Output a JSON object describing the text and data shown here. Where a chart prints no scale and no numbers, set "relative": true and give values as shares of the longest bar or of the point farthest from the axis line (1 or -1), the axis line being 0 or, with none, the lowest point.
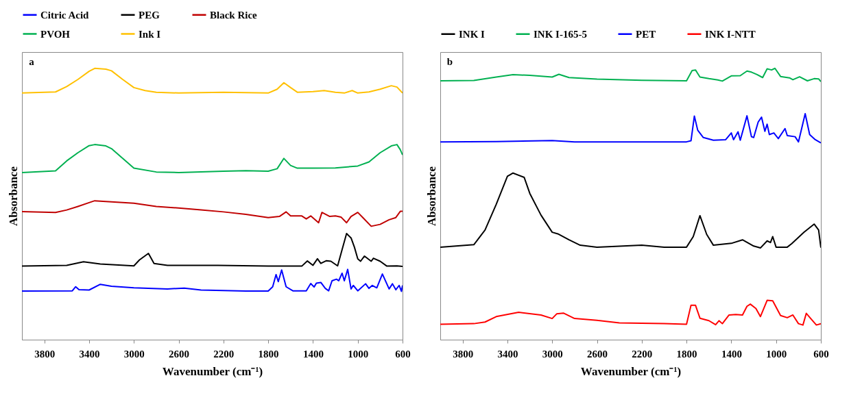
{
  "chart_data": [
    {
      "type": "line",
      "relative": true,
      "annotations": [
        "a"
      ],
      "xlabel": "Wavenumber (cm⁻¹)",
      "ylabel": "Absorbance",
      "xlim": [
        4000,
        600
      ],
      "xticks": [
        3800,
        3400,
        3000,
        2600,
        2200,
        1800,
        1400,
        1000,
        600
      ],
      "legend": "top",
      "grid": false,
      "marker": "none",
      "series": [
        {
          "name": "Citric Acid",
          "color": "#0000ff",
          "x": [
            4000,
            3550,
            3520,
            3490,
            3400,
            3300,
            3200,
            3000,
            2700,
            2550,
            2400,
            2000,
            1800,
            1760,
            1730,
            1710,
            1680,
            1640,
            1580,
            1460,
            1420,
            1390,
            1370,
            1330,
            1290,
            1260,
            1230,
            1190,
            1170,
            1140,
            1120,
            1090,
            1060,
            1040,
            1000,
            930,
            900,
            870,
            830,
            780,
            720,
            690,
            660,
            630,
            610,
            600
          ],
          "values": [
            0.179,
            0.18,
            0.195,
            0.184,
            0.183,
            0.204,
            0.197,
            0.191,
            0.187,
            0.19,
            0.183,
            0.179,
            0.179,
            0.195,
            0.24,
            0.214,
            0.257,
            0.195,
            0.18,
            0.18,
            0.207,
            0.194,
            0.208,
            0.211,
            0.189,
            0.18,
            0.217,
            0.223,
            0.217,
            0.245,
            0.217,
            0.259,
            0.187,
            0.2,
            0.18,
            0.206,
            0.189,
            0.2,
            0.191,
            0.242,
            0.187,
            0.206,
            0.184,
            0.2,
            0.178,
            0.2
          ]
        },
        {
          "name": "PEG",
          "color": "#000000",
          "x": [
            4000,
            3600,
            3450,
            3300,
            3000,
            2950,
            2870,
            2820,
            2700,
            2250,
            1800,
            1500,
            1450,
            1400,
            1360,
            1330,
            1280,
            1240,
            1180,
            1140,
            1100,
            1060,
            1030,
            1000,
            975,
            940,
            880,
            860,
            800,
            740,
            650,
            600
          ],
          "values": [
            0.271,
            0.274,
            0.287,
            0.279,
            0.272,
            0.294,
            0.318,
            0.281,
            0.274,
            0.274,
            0.271,
            0.271,
            0.29,
            0.274,
            0.298,
            0.281,
            0.291,
            0.289,
            0.272,
            0.332,
            0.391,
            0.375,
            0.341,
            0.298,
            0.289,
            0.308,
            0.289,
            0.3,
            0.289,
            0.271,
            0.272,
            0.27
          ]
        },
        {
          "name": "Black Rice",
          "color": "#c00000",
          "x": [
            4000,
            3700,
            3600,
            3500,
            3400,
            3350,
            3200,
            3000,
            2800,
            2600,
            2400,
            2200,
            2000,
            1800,
            1700,
            1640,
            1600,
            1500,
            1460,
            1420,
            1350,
            1320,
            1250,
            1200,
            1150,
            1100,
            1060,
            1000,
            950,
            880,
            800,
            720,
            660,
            620,
            600
          ],
          "values": [
            0.472,
            0.469,
            0.478,
            0.491,
            0.505,
            0.512,
            0.508,
            0.503,
            0.491,
            0.485,
            0.478,
            0.471,
            0.462,
            0.45,
            0.454,
            0.471,
            0.456,
            0.456,
            0.445,
            0.456,
            0.431,
            0.469,
            0.454,
            0.456,
            0.452,
            0.431,
            0.454,
            0.469,
            0.448,
            0.418,
            0.425,
            0.442,
            0.45,
            0.473,
            0.473
          ]
        },
        {
          "name": "PVOH",
          "color": "#00b050",
          "x": [
            4000,
            3700,
            3600,
            3500,
            3400,
            3350,
            3250,
            3200,
            3100,
            3000,
            2800,
            2600,
            2200,
            2000,
            1800,
            1720,
            1660,
            1600,
            1540,
            1400,
            1200,
            1000,
            900,
            800,
            700,
            650,
            620,
            600
          ],
          "values": [
            0.616,
            0.622,
            0.659,
            0.689,
            0.715,
            0.719,
            0.714,
            0.704,
            0.668,
            0.632,
            0.618,
            0.616,
            0.621,
            0.623,
            0.621,
            0.63,
            0.668,
            0.642,
            0.632,
            0.632,
            0.633,
            0.64,
            0.655,
            0.689,
            0.714,
            0.719,
            0.7,
            0.681
          ]
        },
        {
          "name": "Ink I",
          "color": "#ffc000",
          "x": [
            4000,
            3700,
            3600,
            3500,
            3400,
            3350,
            3250,
            3200,
            3100,
            3000,
            2900,
            2800,
            2600,
            2200,
            1800,
            1720,
            1660,
            1600,
            1540,
            1400,
            1300,
            1200,
            1120,
            1050,
            1000,
            900,
            800,
            700,
            650,
            600
          ],
          "values": [
            0.909,
            0.913,
            0.933,
            0.959,
            0.989,
            1.0,
            0.997,
            0.991,
            0.959,
            0.929,
            0.918,
            0.912,
            0.909,
            0.912,
            0.909,
            0.923,
            0.947,
            0.929,
            0.912,
            0.914,
            0.918,
            0.912,
            0.909,
            0.918,
            0.909,
            0.913,
            0.923,
            0.936,
            0.931,
            0.909
          ]
        }
      ]
    },
    {
      "type": "line",
      "relative": true,
      "annotations": [
        "b"
      ],
      "xlabel": "Wavenumber (cm⁻¹)",
      "ylabel": "Absorbance",
      "xlim": [
        4000,
        600
      ],
      "xticks": [
        3800,
        3400,
        3000,
        2600,
        2200,
        1800,
        1400,
        1000,
        600
      ],
      "legend": "top",
      "grid": false,
      "marker": "none",
      "series": [
        {
          "name": "INK I",
          "color": "#000000",
          "x": [
            4000,
            3700,
            3600,
            3500,
            3400,
            3350,
            3250,
            3200,
            3100,
            3000,
            2950,
            2850,
            2750,
            2600,
            2200,
            2000,
            1800,
            1740,
            1680,
            1620,
            1560,
            1400,
            1300,
            1200,
            1140,
            1080,
            1050,
            1030,
            1000,
            900,
            860,
            750,
            660,
            620,
            600
          ],
          "values": [
            0.341,
            0.35,
            0.404,
            0.499,
            0.602,
            0.614,
            0.598,
            0.539,
            0.459,
            0.396,
            0.39,
            0.368,
            0.348,
            0.341,
            0.348,
            0.341,
            0.341,
            0.38,
            0.457,
            0.388,
            0.348,
            0.355,
            0.368,
            0.345,
            0.338,
            0.364,
            0.358,
            0.38,
            0.341,
            0.341,
            0.354,
            0.396,
            0.426,
            0.404,
            0.339
          ]
        },
        {
          "name": "INK I-165-5",
          "color": "#00b050",
          "x": [
            4000,
            3700,
            3500,
            3350,
            3200,
            3000,
            2940,
            2850,
            2600,
            2200,
            1800,
            1750,
            1720,
            1680,
            1600,
            1520,
            1480,
            1400,
            1320,
            1260,
            1220,
            1170,
            1120,
            1080,
            1040,
            1010,
            960,
            880,
            850,
            790,
            720,
            660,
            620,
            600
          ],
          "values": [
            0.954,
            0.955,
            0.968,
            0.977,
            0.974,
            0.968,
            0.978,
            0.966,
            0.96,
            0.956,
            0.954,
            0.992,
            0.994,
            0.968,
            0.962,
            0.957,
            0.953,
            0.972,
            0.973,
            0.99,
            0.986,
            0.977,
            0.966,
            0.998,
            0.994,
            1.0,
            0.97,
            0.965,
            0.958,
            0.969,
            0.954,
            0.962,
            0.961,
            0.951
          ]
        },
        {
          "name": "PET",
          "color": "#0000ff",
          "x": [
            4000,
            3500,
            3000,
            2800,
            2200,
            1800,
            1760,
            1730,
            1700,
            1650,
            1560,
            1450,
            1400,
            1380,
            1340,
            1320,
            1260,
            1220,
            1200,
            1160,
            1130,
            1100,
            1080,
            1060,
            1020,
            980,
            920,
            900,
            830,
            800,
            740,
            700,
            650,
            600
          ],
          "values": [
            0.729,
            0.73,
            0.734,
            0.729,
            0.729,
            0.729,
            0.733,
            0.824,
            0.772,
            0.745,
            0.735,
            0.737,
            0.762,
            0.737,
            0.766,
            0.735,
            0.825,
            0.748,
            0.745,
            0.802,
            0.82,
            0.768,
            0.794,
            0.756,
            0.762,
            0.741,
            0.778,
            0.752,
            0.748,
            0.729,
            0.833,
            0.756,
            0.737,
            0.725
          ]
        },
        {
          "name": "INK I-NTT",
          "color": "#ff0000",
          "x": [
            4000,
            3700,
            3600,
            3500,
            3300,
            3100,
            3000,
            2960,
            2900,
            2800,
            2600,
            2400,
            2000,
            1800,
            1760,
            1720,
            1680,
            1600,
            1540,
            1510,
            1480,
            1420,
            1360,
            1300,
            1260,
            1230,
            1180,
            1140,
            1080,
            1030,
            960,
            900,
            850,
            800,
            760,
            730,
            680,
            640,
            600
          ],
          "values": [
            0.057,
            0.059,
            0.065,
            0.085,
            0.101,
            0.091,
            0.078,
            0.095,
            0.098,
            0.078,
            0.071,
            0.062,
            0.059,
            0.057,
            0.127,
            0.127,
            0.079,
            0.07,
            0.055,
            0.07,
            0.059,
            0.091,
            0.093,
            0.091,
            0.123,
            0.131,
            0.115,
            0.085,
            0.145,
            0.143,
            0.089,
            0.081,
            0.091,
            0.059,
            0.054,
            0.097,
            0.073,
            0.054,
            0.059
          ]
        }
      ]
    }
  ]
}
